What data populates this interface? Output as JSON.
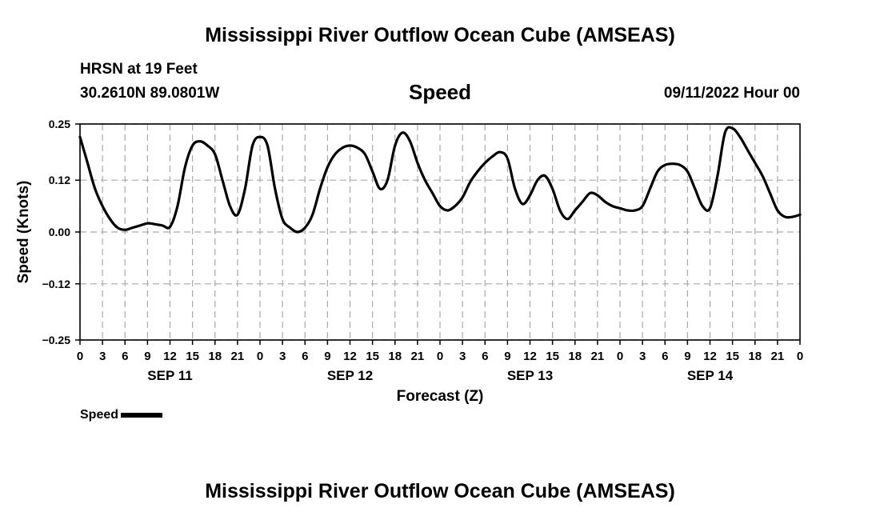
{
  "header": {
    "title": "Mississippi River Outflow Ocean Cube (AMSEAS)",
    "station": "HRSN at 19 Feet",
    "coords": "30.2610N  89.0801W",
    "variable": "Speed",
    "datetime": "09/11/2022 Hour 00"
  },
  "legend": {
    "label": "Speed"
  },
  "footer": {
    "title": "Mississippi River Outflow Ocean Cube (AMSEAS)"
  },
  "chart_data": {
    "type": "line",
    "title": "Speed",
    "xlabel": "Forecast (Z)",
    "ylabel": "Speed (Knots)",
    "xlim": [
      0,
      96
    ],
    "ylim": [
      -0.25,
      0.25
    ],
    "yticks": [
      -0.25,
      -0.12,
      0.0,
      0.12,
      0.25
    ],
    "ytick_labels": [
      "−0.25",
      "−0.12",
      "0.00",
      "0.12",
      "0.25"
    ],
    "xticks": [
      0,
      3,
      6,
      9,
      12,
      15,
      18,
      21,
      24,
      27,
      30,
      33,
      36,
      39,
      42,
      45,
      48,
      51,
      54,
      57,
      60,
      63,
      66,
      69,
      72,
      75,
      78,
      81,
      84,
      87,
      90,
      93,
      96
    ],
    "xtick_labels": [
      "0",
      "3",
      "6",
      "9",
      "12",
      "15",
      "18",
      "21",
      "0",
      "3",
      "6",
      "9",
      "12",
      "15",
      "18",
      "21",
      "0",
      "3",
      "6",
      "9",
      "12",
      "15",
      "18",
      "21",
      "0",
      "3",
      "6",
      "9",
      "12",
      "15",
      "18",
      "21",
      "0"
    ],
    "day_labels": [
      {
        "x": 12,
        "label": "SEP 11"
      },
      {
        "x": 36,
        "label": "SEP 12"
      },
      {
        "x": 60,
        "label": "SEP 13"
      },
      {
        "x": 84,
        "label": "SEP 14"
      }
    ],
    "grid": true,
    "series": [
      {
        "name": "Speed",
        "color": "#000000",
        "x": [
          0,
          1,
          2,
          3,
          4,
          5,
          6,
          7,
          8,
          9,
          10,
          11,
          12,
          13,
          14,
          15,
          16,
          17,
          18,
          19,
          20,
          21,
          22,
          23,
          24,
          25,
          26,
          27,
          28,
          29,
          30,
          31,
          32,
          33,
          34,
          35,
          36,
          37,
          38,
          39,
          40,
          41,
          42,
          43,
          44,
          45,
          46,
          47,
          48,
          49,
          50,
          51,
          52,
          53,
          54,
          55,
          56,
          57,
          58,
          59,
          60,
          61,
          62,
          63,
          64,
          65,
          66,
          67,
          68,
          69,
          70,
          71,
          72,
          73,
          74,
          75,
          76,
          77,
          78,
          79,
          80,
          81,
          82,
          83,
          84,
          85,
          86,
          87,
          88,
          89,
          90,
          91,
          92,
          93,
          94,
          95,
          96
        ],
        "values": [
          0.22,
          0.16,
          0.1,
          0.06,
          0.03,
          0.01,
          0.005,
          0.01,
          0.015,
          0.02,
          0.018,
          0.015,
          0.012,
          0.06,
          0.15,
          0.2,
          0.21,
          0.2,
          0.18,
          0.12,
          0.06,
          0.04,
          0.1,
          0.2,
          0.22,
          0.2,
          0.1,
          0.03,
          0.01,
          0.0,
          0.01,
          0.04,
          0.1,
          0.15,
          0.18,
          0.195,
          0.2,
          0.195,
          0.18,
          0.14,
          0.1,
          0.12,
          0.2,
          0.23,
          0.21,
          0.16,
          0.12,
          0.09,
          0.06,
          0.05,
          0.06,
          0.08,
          0.115,
          0.14,
          0.16,
          0.175,
          0.185,
          0.17,
          0.1,
          0.065,
          0.085,
          0.12,
          0.13,
          0.1,
          0.05,
          0.03,
          0.05,
          0.07,
          0.09,
          0.085,
          0.07,
          0.06,
          0.055,
          0.05,
          0.05,
          0.06,
          0.1,
          0.14,
          0.155,
          0.158,
          0.155,
          0.14,
          0.1,
          0.06,
          0.055,
          0.13,
          0.23,
          0.24,
          0.22,
          0.19,
          0.16,
          0.13,
          0.09,
          0.05,
          0.035,
          0.035,
          0.04
        ]
      }
    ]
  }
}
